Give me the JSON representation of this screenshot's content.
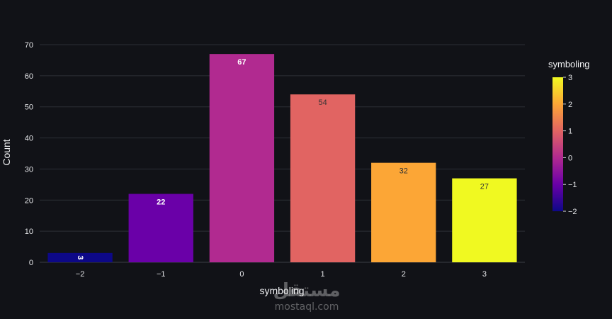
{
  "chart_data": {
    "type": "bar",
    "xlabel": "symboling",
    "ylabel": "Count",
    "categories": [
      "−2",
      "−1",
      "0",
      "1",
      "2",
      "3"
    ],
    "x_values": [
      -2,
      -1,
      0,
      1,
      2,
      3
    ],
    "values": [
      3,
      22,
      67,
      54,
      32,
      27
    ],
    "y_ticks": [
      "0",
      "10",
      "20",
      "30",
      "40",
      "50",
      "60",
      "70"
    ],
    "ylim": [
      0,
      70
    ],
    "grid": true,
    "legend": {
      "type": "colorbar",
      "title": "symboling",
      "placement": "right",
      "range": [
        -2,
        3
      ],
      "ticks": [
        "−2",
        "−1",
        "0",
        "1",
        "2",
        "3"
      ],
      "colorscale": "plasma"
    },
    "colors": {
      "background": "#111217",
      "grid": "#2c2f36",
      "bars": [
        "#0d0887",
        "#6a00a8",
        "#b12a90",
        "#e16462",
        "#fca636",
        "#f0f921"
      ]
    }
  },
  "watermark": {
    "logo_text": "مستقل",
    "url": "mostaql.com"
  }
}
